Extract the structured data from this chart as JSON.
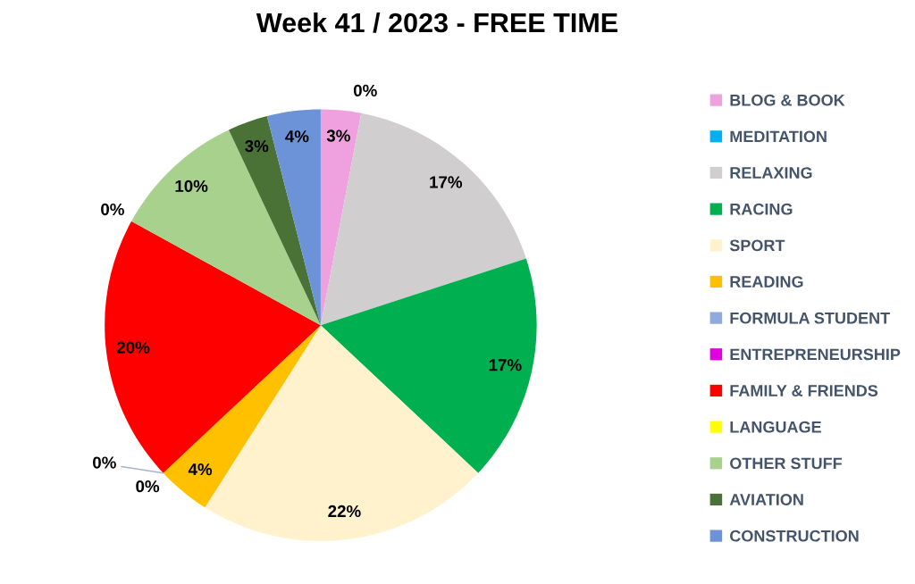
{
  "chart_data": {
    "type": "pie",
    "title": "Week 41 / 2023 - FREE TIME",
    "categories": [
      "BLOG & BOOK",
      "MEDITATION",
      "RELAXING",
      "RACING",
      "SPORT",
      "READING",
      "FORMULA STUDENT",
      "ENTREPRENEURSHIP",
      "FAMILY & FRIENDS",
      "LANGUAGE",
      "OTHER STUFF",
      "AVIATION",
      "CONSTRUCTION"
    ],
    "values": [
      3,
      0,
      17,
      17,
      22,
      4,
      0,
      0,
      20,
      0,
      10,
      3,
      4
    ],
    "value_labels": [
      "3%",
      "0%",
      "17%",
      "17%",
      "22%",
      "4%",
      "0%",
      "0%",
      "20%",
      "0%",
      "10%",
      "3%",
      "4%"
    ],
    "colors": [
      "#efa0df",
      "#00b0f0",
      "#d0cece",
      "#00b050",
      "#fff2cc",
      "#ffc000",
      "#8faadc",
      "#e000e0",
      "#ff0000",
      "#ffff00",
      "#a9d18e",
      "#4b7236",
      "#6c93d8"
    ],
    "legend": "right"
  }
}
